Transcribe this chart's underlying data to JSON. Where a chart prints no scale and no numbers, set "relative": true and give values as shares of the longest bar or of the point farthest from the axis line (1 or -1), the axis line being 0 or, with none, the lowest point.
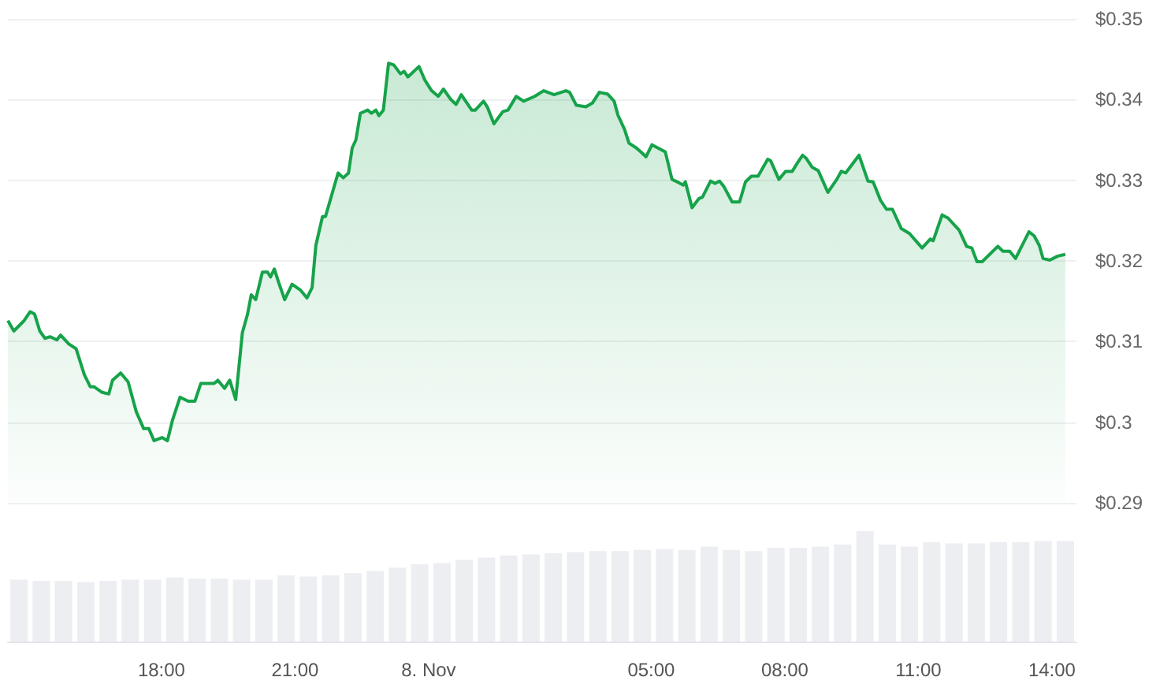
{
  "chart_data": [
    {
      "type": "area",
      "xlim": [
        "--11-07T14:33",
        "--11-08T14:33"
      ],
      "ylim": [
        0.29,
        0.35
      ],
      "yticks": [
        {
          "value": 0.29,
          "label": "$0.29"
        },
        {
          "value": 0.3,
          "label": "$0.3"
        },
        {
          "value": 0.31,
          "label": "$0.31"
        },
        {
          "value": 0.32,
          "label": "$0.32"
        },
        {
          "value": 0.33,
          "label": "$0.33"
        },
        {
          "value": 0.34,
          "label": "$0.34"
        },
        {
          "value": 0.35,
          "label": "$0.35"
        }
      ],
      "grid": "y",
      "tick_labels": "y",
      "series": [
        {
          "color": "#16a34a",
          "x": [
            "--11-07T14:33",
            "--11-07T14:41",
            "--11-07T14:55",
            "--11-07T15:03",
            "--11-07T15:09",
            "--11-07T15:16",
            "--11-07T15:23",
            "--11-07T15:30",
            "--11-07T15:39",
            "--11-07T15:44",
            "--11-07T15:55",
            "--11-07T16:05",
            "--11-07T16:16",
            "--11-07T16:24",
            "--11-07T16:29",
            "--11-07T16:40",
            "--11-07T16:49",
            "--11-07T16:54",
            "--11-07T17:05",
            "--11-07T17:15",
            "--11-07T17:26",
            "--11-07T17:36",
            "--11-07T17:43",
            "--11-07T17:50",
            "--11-07T18:01",
            "--11-07T18:08",
            "--11-07T18:15",
            "--11-07T18:25",
            "--11-07T18:36",
            "--11-07T18:45",
            "--11-07T18:53",
            "--11-07T19:11",
            "--11-07T19:16",
            "--11-07T19:25",
            "--11-07T19:32",
            "--11-07T19:40",
            "--11-07T19:49",
            "--11-07T19:56",
            "--11-07T20:01",
            "--11-07T20:07",
            "--11-07T20:16",
            "--11-07T20:23",
            "--11-07T20:27",
            "--11-07T20:32",
            "--11-07T20:38",
            "--11-07T20:46",
            "--11-07T20:56",
            "--11-07T21:07",
            "--11-07T21:16",
            "--11-07T21:23",
            "--11-07T21:28",
            "--11-07T21:37",
            "--11-07T21:41",
            "--11-07T21:58",
            "--11-07T22:05",
            "--11-07T22:12",
            "--11-07T22:17",
            "--11-07T22:22",
            "--11-07T22:28",
            "--11-07T22:38",
            "--11-07T22:43",
            "--11-07T22:49",
            "--11-07T22:53",
            "--11-07T22:59",
            "--11-07T23:06",
            "--11-07T23:13",
            "--11-07T23:22",
            "--11-07T23:27",
            "--11-07T23:32",
            "--11-07T23:47",
            "--11-07T23:55",
            "--11-08T00:04",
            "--11-08T00:13",
            "--11-08T00:20",
            "--11-08T00:30",
            "--11-08T00:37",
            "--11-08T00:44",
            "--11-08T00:58",
            "--11-08T01:03",
            "--11-08T01:14",
            "--11-08T01:19",
            "--11-08T01:28",
            "--11-08T01:40",
            "--11-08T01:47",
            "--11-08T01:58",
            "--11-08T02:08",
            "--11-08T02:23",
            "--11-08T02:35",
            "--11-08T02:49",
            "--11-08T03:05",
            "--11-08T03:10",
            "--11-08T03:19",
            "--11-08T03:32",
            "--11-08T03:41",
            "--11-08T03:50",
            "--11-08T04:01",
            "--11-08T04:10",
            "--11-08T04:15",
            "--11-08T04:24",
            "--11-08T04:30",
            "--11-08T04:40",
            "--11-08T04:46",
            "--11-08T04:53",
            "--11-08T05:01",
            "--11-08T05:11",
            "--11-08T05:19",
            "--11-08T05:28",
            "--11-08T05:35",
            "--11-08T05:43",
            "--11-08T05:46",
            "--11-08T05:55",
            "--11-08T06:04",
            "--11-08T06:09",
            "--11-08T06:20",
            "--11-08T06:26",
            "--11-08T06:32",
            "--11-08T06:38",
            "--11-08T06:49",
            "--11-08T06:59",
            "--11-08T07:07",
            "--11-08T07:15",
            "--11-08T07:24",
            "--11-08T07:37",
            "--11-08T07:41",
            "--11-08T07:52",
            "--11-08T08:01",
            "--11-08T08:10",
            "--11-08T08:16",
            "--11-08T08:24",
            "--11-08T08:29",
            "--11-08T08:37",
            "--11-08T08:45",
            "--11-08T08:58",
            "--11-08T09:10",
            "--11-08T09:16",
            "--11-08T09:22",
            "--11-08T09:40",
            "--11-08T09:52",
            "--11-08T09:59",
            "--11-08T10:09",
            "--11-08T10:17",
            "--11-08T10:25",
            "--11-08T10:37",
            "--11-08T10:48",
            "--11-08T11:05",
            "--11-08T11:16",
            "--11-08T11:20",
            "--11-08T11:32",
            "--11-08T11:40",
            "--11-08T11:55",
            "--11-08T12:05",
            "--11-08T12:12",
            "--11-08T12:19",
            "--11-08T12:26",
            "--11-08T12:47",
            "--11-08T12:54",
            "--11-08T13:03",
            "--11-08T13:11",
            "--11-08T13:29",
            "--11-08T13:36",
            "--11-08T13:43",
            "--11-08T13:48",
            "--11-08T13:57",
            "--11-08T14:08",
            "--11-08T14:18"
          ],
          "values": [
            0.3126,
            0.3113,
            0.3126,
            0.3137,
            0.3134,
            0.3113,
            0.3104,
            0.3106,
            0.3102,
            0.3108,
            0.3097,
            0.3091,
            0.3059,
            0.3044,
            0.3044,
            0.3037,
            0.3035,
            0.3052,
            0.3061,
            0.305,
            0.3013,
            0.2992,
            0.2992,
            0.2977,
            0.2981,
            0.2977,
            0.3003,
            0.3031,
            0.3026,
            0.3026,
            0.3048,
            0.3048,
            0.3052,
            0.3042,
            0.3052,
            0.3028,
            0.3111,
            0.3134,
            0.3158,
            0.3152,
            0.3186,
            0.3186,
            0.318,
            0.319,
            0.3173,
            0.3152,
            0.3171,
            0.3164,
            0.3154,
            0.3167,
            0.3219,
            0.3255,
            0.3255,
            0.3309,
            0.3303,
            0.3309,
            0.334,
            0.335,
            0.3383,
            0.3387,
            0.3383,
            0.3387,
            0.338,
            0.3387,
            0.3445,
            0.3443,
            0.3432,
            0.3435,
            0.3428,
            0.3441,
            0.3424,
            0.3411,
            0.3404,
            0.3413,
            0.34,
            0.3394,
            0.3406,
            0.3387,
            0.3387,
            0.3398,
            0.3391,
            0.337,
            0.3385,
            0.3387,
            0.3404,
            0.3398,
            0.3404,
            0.3411,
            0.3406,
            0.3411,
            0.3409,
            0.3393,
            0.3391,
            0.3396,
            0.3409,
            0.3407,
            0.3398,
            0.3381,
            0.3363,
            0.3346,
            0.334,
            0.3335,
            0.3329,
            0.3344,
            0.3339,
            0.3335,
            0.3301,
            0.3298,
            0.3294,
            0.3298,
            0.3266,
            0.3277,
            0.3279,
            0.3299,
            0.3296,
            0.3299,
            0.3292,
            0.3273,
            0.3273,
            0.3298,
            0.3305,
            0.3305,
            0.3326,
            0.3324,
            0.3301,
            0.3311,
            0.3311,
            0.332,
            0.3331,
            0.3327,
            0.3316,
            0.3312,
            0.3285,
            0.3301,
            0.3311,
            0.3309,
            0.3331,
            0.3299,
            0.3298,
            0.3275,
            0.3264,
            0.3264,
            0.324,
            0.3234,
            0.3216,
            0.3227,
            0.3225,
            0.3257,
            0.3253,
            0.3238,
            0.3218,
            0.3216,
            0.3199,
            0.3199,
            0.3218,
            0.3212,
            0.3212,
            0.3203,
            0.3236,
            0.3231,
            0.3219,
            0.3203,
            0.3201,
            0.3206,
            0.3208
          ]
        }
      ]
    },
    {
      "type": "bar",
      "relative": true,
      "xlim": [
        "--11-07T14:33",
        "--11-08T14:33"
      ],
      "xticks": [
        {
          "value": "--11-07T18:00",
          "label": "18:00"
        },
        {
          "value": "--11-07T21:00",
          "label": "21:00"
        },
        {
          "value": "--11-08T00:00",
          "label": "8. Nov"
        },
        {
          "value": "--11-08T05:00",
          "label": "05:00"
        },
        {
          "value": "--11-08T08:00",
          "label": "08:00"
        },
        {
          "value": "--11-08T11:00",
          "label": "11:00"
        },
        {
          "value": "--11-08T14:00",
          "label": "14:00"
        }
      ],
      "tick_labels": "x",
      "x": [
        "--11-07T14:48",
        "--11-07T15:18",
        "--11-07T15:48",
        "--11-07T16:18",
        "--11-07T16:48",
        "--11-07T17:18",
        "--11-07T17:48",
        "--11-07T18:18",
        "--11-07T18:48",
        "--11-07T19:18",
        "--11-07T19:48",
        "--11-07T20:18",
        "--11-07T20:48",
        "--11-07T21:18",
        "--11-07T21:48",
        "--11-07T22:18",
        "--11-07T22:48",
        "--11-07T23:18",
        "--11-07T23:48",
        "--11-08T00:18",
        "--11-08T00:48",
        "--11-08T01:18",
        "--11-08T01:48",
        "--11-08T02:18",
        "--11-08T02:48",
        "--11-08T03:18",
        "--11-08T03:48",
        "--11-08T04:18",
        "--11-08T04:48",
        "--11-08T05:18",
        "--11-08T05:48",
        "--11-08T06:18",
        "--11-08T06:48",
        "--11-08T07:18",
        "--11-08T07:48",
        "--11-08T08:18",
        "--11-08T08:48",
        "--11-08T09:18",
        "--11-08T09:48",
        "--11-08T10:18",
        "--11-08T10:48",
        "--11-08T11:18",
        "--11-08T11:48",
        "--11-08T12:18",
        "--11-08T12:48",
        "--11-08T13:18",
        "--11-08T13:48",
        "--11-08T14:18"
      ],
      "series": [
        {
          "color": "#eceef2",
          "values": [
            0.56,
            0.55,
            0.55,
            0.54,
            0.55,
            0.56,
            0.56,
            0.58,
            0.57,
            0.57,
            0.56,
            0.56,
            0.6,
            0.59,
            0.6,
            0.62,
            0.64,
            0.67,
            0.7,
            0.71,
            0.74,
            0.76,
            0.78,
            0.79,
            0.8,
            0.81,
            0.82,
            0.82,
            0.83,
            0.84,
            0.83,
            0.86,
            0.83,
            0.82,
            0.85,
            0.85,
            0.86,
            0.88,
            1.0,
            0.88,
            0.86,
            0.9,
            0.89,
            0.89,
            0.9,
            0.9,
            0.91,
            0.91
          ]
        }
      ]
    }
  ]
}
